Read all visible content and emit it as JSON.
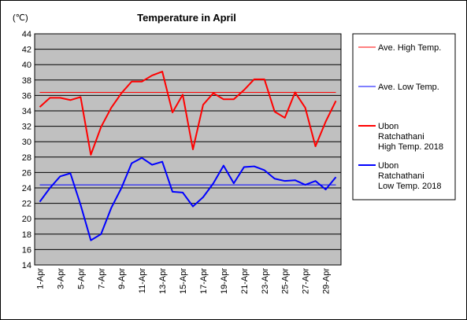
{
  "chart_data": {
    "type": "line",
    "title": "Temperature in April",
    "unit": "(℃)",
    "ylim": [
      14,
      44
    ],
    "ytick_step": 2,
    "grid": true,
    "legend_placement": "right",
    "x": [
      "1-Apr",
      "2-Apr",
      "3-Apr",
      "4-Apr",
      "5-Apr",
      "6-Apr",
      "7-Apr",
      "8-Apr",
      "9-Apr",
      "10-Apr",
      "11-Apr",
      "12-Apr",
      "13-Apr",
      "14-Apr",
      "15-Apr",
      "16-Apr",
      "17-Apr",
      "18-Apr",
      "19-Apr",
      "20-Apr",
      "21-Apr",
      "22-Apr",
      "23-Apr",
      "24-Apr",
      "25-Apr",
      "26-Apr",
      "27-Apr",
      "28-Apr",
      "29-Apr",
      "30-Apr"
    ],
    "x_tick_labels": [
      "1-Apr",
      "3-Apr",
      "5-Apr",
      "7-Apr",
      "9-Apr",
      "11-Apr",
      "13-Apr",
      "15-Apr",
      "17-Apr",
      "19-Apr",
      "21-Apr",
      "23-Apr",
      "25-Apr",
      "27-Apr",
      "29-Apr"
    ],
    "series": [
      {
        "name": "Ave. High Temp.",
        "color": "#ff0000",
        "width": 1,
        "values": [
          36.4,
          36.4,
          36.4,
          36.4,
          36.4,
          36.4,
          36.4,
          36.4,
          36.4,
          36.4,
          36.4,
          36.4,
          36.4,
          36.4,
          36.4,
          36.4,
          36.4,
          36.4,
          36.4,
          36.4,
          36.4,
          36.4,
          36.4,
          36.4,
          36.4,
          36.4,
          36.4,
          36.4,
          36.4,
          36.4
        ]
      },
      {
        "name": "Ave. Low Temp.",
        "color": "#0000ff",
        "width": 1,
        "values": [
          24.4,
          24.4,
          24.4,
          24.4,
          24.4,
          24.4,
          24.4,
          24.4,
          24.4,
          24.4,
          24.4,
          24.4,
          24.4,
          24.4,
          24.4,
          24.4,
          24.4,
          24.4,
          24.4,
          24.4,
          24.4,
          24.4,
          24.4,
          24.4,
          24.4,
          24.4,
          24.4,
          24.4,
          24.4,
          24.4
        ]
      },
      {
        "name": "Ubon Ratchathani High Temp. 2018",
        "legend_lines": [
          "Ubon",
          "Ratchathani",
          "High Temp. 2018"
        ],
        "color": "#ff0000",
        "width": 2,
        "values": [
          34.5,
          35.7,
          35.7,
          35.4,
          35.8,
          28.3,
          31.9,
          34.4,
          36.3,
          37.8,
          37.8,
          38.6,
          39.1,
          33.8,
          36.1,
          29.0,
          34.8,
          36.3,
          35.5,
          35.5,
          36.7,
          38.1,
          38.1,
          33.9,
          33.1,
          36.4,
          34.4,
          29.4,
          32.6,
          35.3
        ]
      },
      {
        "name": "Ubon Ratchathani Low Temp. 2018",
        "legend_lines": [
          "Ubon",
          "Ratchathani",
          "Low Temp. 2018"
        ],
        "color": "#0000ff",
        "width": 2,
        "values": [
          22.2,
          24.0,
          25.5,
          25.9,
          21.8,
          17.2,
          18.0,
          21.4,
          24.0,
          27.2,
          27.9,
          27.0,
          27.4,
          23.5,
          23.4,
          21.6,
          22.8,
          24.6,
          26.9,
          24.6,
          26.7,
          26.8,
          26.3,
          25.2,
          24.9,
          25.0,
          24.4,
          24.9,
          23.8,
          25.4
        ]
      }
    ]
  }
}
